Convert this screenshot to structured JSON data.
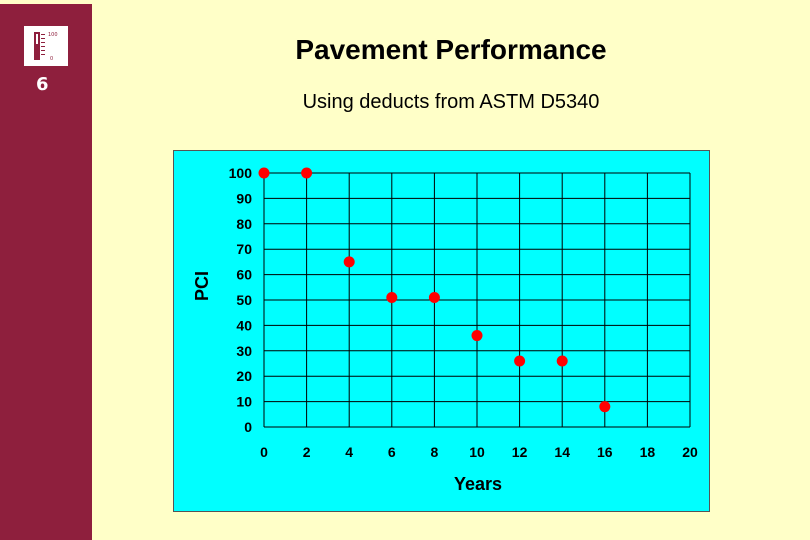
{
  "slide": {
    "number": "6",
    "logo_top": "100",
    "logo_bottom": "0",
    "title": "Pavement Performance",
    "subtitle": "Using deducts from ASTM D5340"
  },
  "colors": {
    "background": "#ffffc8",
    "sidebar": "#8e1f3d",
    "plot_area": "#00ffff",
    "marker": "#ff0000",
    "grid": "#000000"
  },
  "chart_data": {
    "type": "scatter",
    "title": "",
    "xlabel": "Years",
    "ylabel": "PCI",
    "xlim": [
      0,
      20
    ],
    "ylim": [
      0,
      100
    ],
    "xticks": [
      0,
      2,
      4,
      6,
      8,
      10,
      12,
      14,
      16,
      18,
      20
    ],
    "yticks": [
      0,
      10,
      20,
      30,
      40,
      50,
      60,
      70,
      80,
      90,
      100
    ],
    "grid": true,
    "legend": "none",
    "series": [
      {
        "x": [
          0,
          2,
          4,
          6,
          8,
          10,
          12,
          14,
          16
        ],
        "y": [
          100,
          100,
          65,
          51,
          51,
          36,
          26,
          26,
          8
        ]
      }
    ]
  }
}
